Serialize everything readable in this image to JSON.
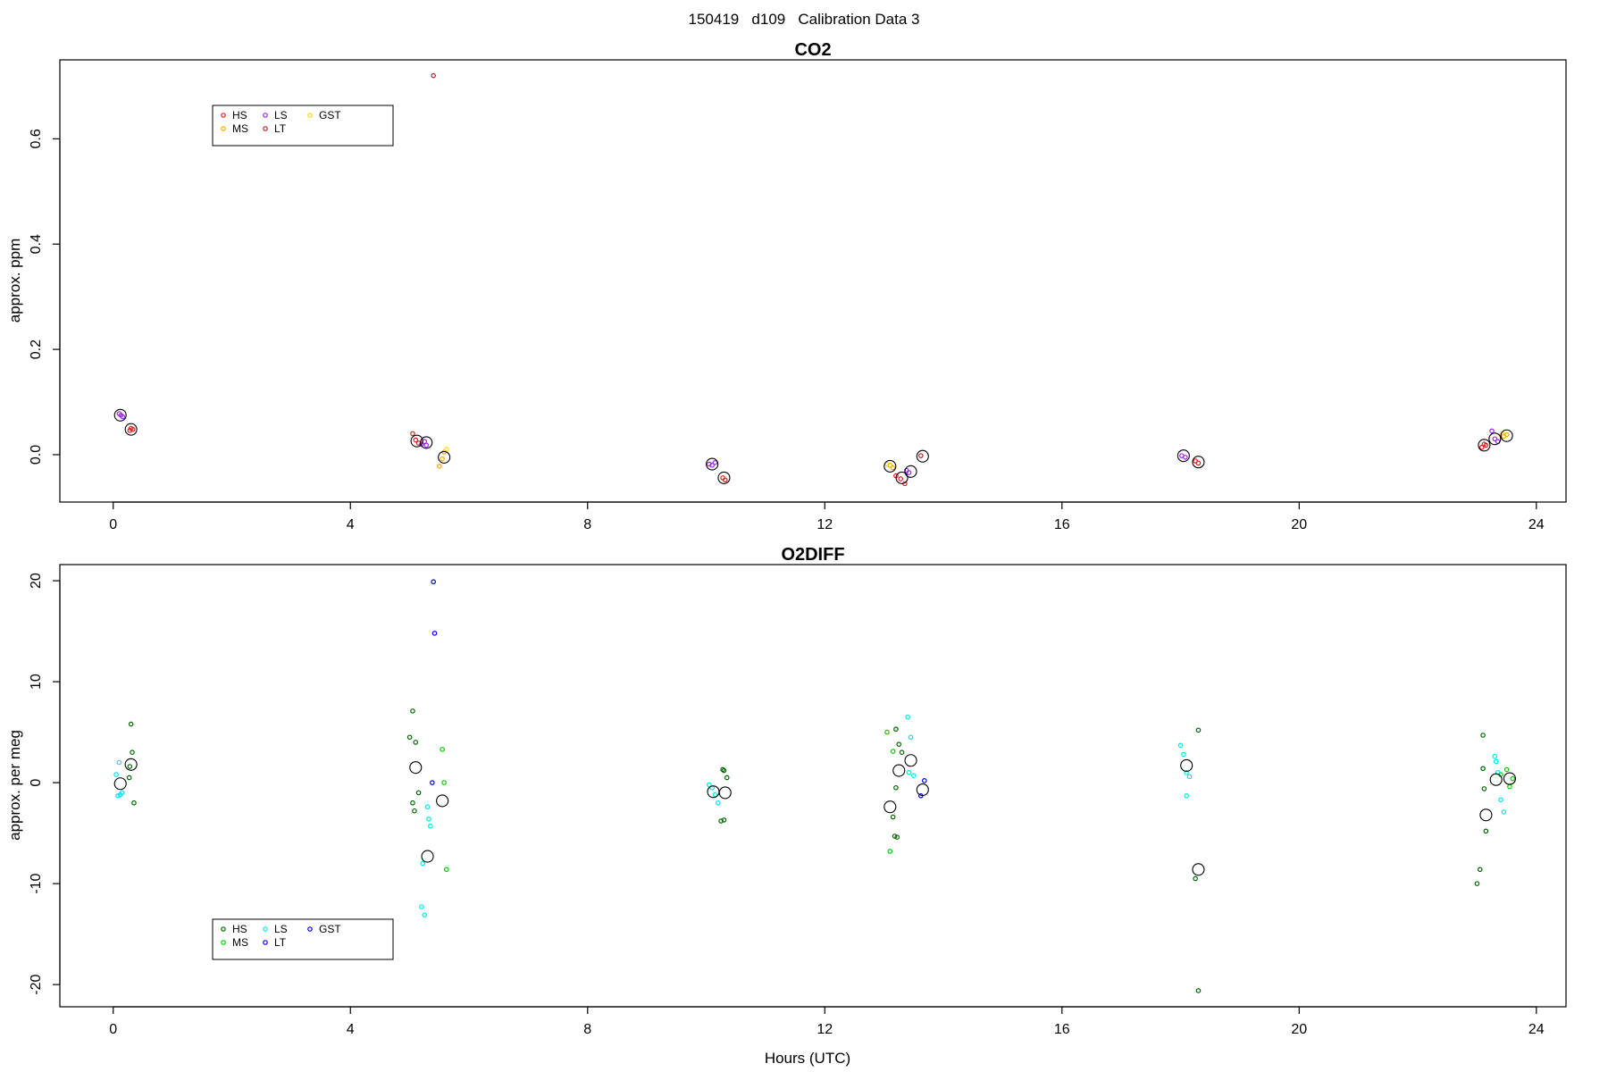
{
  "page_title": "150419   d109   Calibration Data 3",
  "colors": {
    "HS_co2": "#e31a1c",
    "MS_co2": "#ffa500",
    "LS_co2": "#a020f0",
    "LT_co2": "#b22222",
    "GST_co2": "#ffd700",
    "HS_o2": "#006400",
    "MS_o2": "#00cc00",
    "LS_o2": "#00e5ee",
    "LT_o2": "#0000ff",
    "GST_o2": "#0000cd",
    "mean": "#000000"
  },
  "chart_data": [
    {
      "type": "scatter",
      "title": "CO2",
      "xlabel": "",
      "ylabel": "approx. ppm",
      "xlim": [
        -0.9,
        24.5
      ],
      "ylim": [
        -0.09,
        0.75
      ],
      "xticks": [
        0,
        4,
        8,
        12,
        16,
        20,
        24
      ],
      "yticks": [
        0.0,
        0.2,
        0.4,
        0.6
      ],
      "ytick_labels": [
        "0.0",
        "0.2",
        "0.4",
        "0.6"
      ],
      "legend": {
        "position": "top-left",
        "entries": [
          "HS",
          "MS",
          "LS",
          "LT",
          "GST"
        ]
      },
      "series": [
        {
          "name": "HS",
          "color_key": "HS_co2",
          "points": [
            [
              0.3,
              0.05
            ],
            [
              0.28,
              0.046
            ],
            [
              0.33,
              0.048
            ],
            [
              5.05,
              0.04
            ],
            [
              5.1,
              0.028
            ],
            [
              5.15,
              0.022
            ],
            [
              10.28,
              -0.044
            ],
            [
              10.32,
              -0.048
            ],
            [
              13.2,
              -0.04
            ],
            [
              13.28,
              -0.046
            ],
            [
              13.35,
              -0.055
            ],
            [
              18.25,
              -0.012
            ],
            [
              18.3,
              -0.016
            ],
            [
              23.08,
              0.014
            ],
            [
              23.12,
              0.02
            ],
            [
              23.15,
              0.018
            ]
          ]
        },
        {
          "name": "MS",
          "color_key": "MS_co2",
          "points": [
            [
              5.5,
              -0.022
            ],
            [
              5.58,
              0.005
            ],
            [
              5.55,
              -0.008
            ],
            [
              13.1,
              -0.02
            ],
            [
              13.15,
              -0.025
            ],
            [
              23.45,
              0.035
            ],
            [
              23.5,
              0.038
            ]
          ]
        },
        {
          "name": "LS",
          "color_key": "LS_co2",
          "points": [
            [
              0.1,
              0.078
            ],
            [
              0.13,
              0.075
            ],
            [
              0.16,
              0.072
            ],
            [
              5.2,
              0.02
            ],
            [
              5.25,
              0.025
            ],
            [
              5.28,
              0.018
            ],
            [
              10.05,
              -0.018
            ],
            [
              10.1,
              -0.02
            ],
            [
              10.15,
              -0.015
            ],
            [
              13.38,
              -0.03
            ],
            [
              13.42,
              -0.034
            ],
            [
              18.02,
              -0.002
            ],
            [
              18.08,
              -0.005
            ],
            [
              23.25,
              0.045
            ],
            [
              23.3,
              0.03
            ],
            [
              23.35,
              0.025
            ]
          ]
        },
        {
          "name": "LT",
          "color_key": "LT_co2",
          "points": [
            [
              5.4,
              0.72
            ],
            [
              13.62,
              -0.002
            ]
          ]
        },
        {
          "name": "GST",
          "color_key": "GST_co2",
          "points": [
            [
              5.62,
              0.01
            ],
            [
              13.05,
              -0.018
            ],
            [
              23.42,
              0.04
            ]
          ]
        },
        {
          "name": "",
          "color_key": "mean",
          "mean": true,
          "points": [
            [
              0.12,
              0.075
            ],
            [
              0.3,
              0.048
            ],
            [
              5.12,
              0.026
            ],
            [
              5.28,
              0.023
            ],
            [
              5.58,
              -0.005
            ],
            [
              10.1,
              -0.018
            ],
            [
              10.3,
              -0.044
            ],
            [
              13.1,
              -0.022
            ],
            [
              13.3,
              -0.044
            ],
            [
              13.45,
              -0.032
            ],
            [
              13.65,
              -0.003
            ],
            [
              18.05,
              -0.002
            ],
            [
              18.3,
              -0.014
            ],
            [
              23.12,
              0.018
            ],
            [
              23.3,
              0.03
            ],
            [
              23.5,
              0.036
            ]
          ]
        }
      ]
    },
    {
      "type": "scatter",
      "title": "O2DIFF",
      "xlabel": "Hours (UTC)",
      "ylabel": "approx. per meg",
      "xlim": [
        -0.9,
        24.5
      ],
      "ylim": [
        -22.2,
        21.6
      ],
      "xticks": [
        0,
        4,
        8,
        12,
        16,
        20,
        24
      ],
      "yticks": [
        -20,
        -10,
        0,
        10,
        20
      ],
      "ytick_labels": [
        "-20",
        "-10",
        "0",
        "10",
        "20"
      ],
      "legend": {
        "position": "bottom-left",
        "entries": [
          "HS",
          "MS",
          "LS",
          "LT",
          "GST"
        ]
      },
      "series": [
        {
          "name": "HS",
          "color_key": "HS_o2",
          "points": [
            [
              0.3,
              5.8
            ],
            [
              0.32,
              3.0
            ],
            [
              0.28,
              1.6
            ],
            [
              0.35,
              -2.0
            ],
            [
              0.27,
              0.5
            ],
            [
              5.0,
              4.5
            ],
            [
              5.05,
              7.1
            ],
            [
              5.1,
              4.0
            ],
            [
              5.05,
              -2.0
            ],
            [
              5.15,
              -1.0
            ],
            [
              5.08,
              -2.8
            ],
            [
              10.3,
              1.2
            ],
            [
              10.35,
              0.5
            ],
            [
              10.25,
              -3.8
            ],
            [
              10.3,
              -3.7
            ],
            [
              10.28,
              1.3
            ],
            [
              13.2,
              5.3
            ],
            [
              13.25,
              3.8
            ],
            [
              13.3,
              3.0
            ],
            [
              13.2,
              -0.5
            ],
            [
              13.18,
              -5.3
            ],
            [
              13.15,
              -3.4
            ],
            [
              13.22,
              -5.4
            ],
            [
              18.3,
              5.2
            ],
            [
              18.25,
              -9.5
            ],
            [
              18.3,
              -20.6
            ],
            [
              23.1,
              4.7
            ],
            [
              23.12,
              -0.6
            ],
            [
              23.15,
              -4.8
            ],
            [
              23.05,
              -8.6
            ],
            [
              23.0,
              -10.0
            ],
            [
              23.1,
              1.4
            ]
          ]
        },
        {
          "name": "MS",
          "color_key": "MS_o2",
          "points": [
            [
              5.55,
              3.3
            ],
            [
              5.58,
              0.0
            ],
            [
              5.62,
              -8.6
            ],
            [
              13.05,
              5.0
            ],
            [
              13.1,
              -6.8
            ],
            [
              13.15,
              3.1
            ],
            [
              23.5,
              1.3
            ],
            [
              23.55,
              -0.4
            ],
            [
              23.4,
              0.8
            ],
            [
              23.6,
              0.4
            ]
          ]
        },
        {
          "name": "LS",
          "color_key": "LS_o2",
          "points": [
            [
              0.05,
              0.8
            ],
            [
              0.1,
              2.0
            ],
            [
              0.12,
              -1.2
            ],
            [
              0.15,
              -1.0
            ],
            [
              0.08,
              -1.3
            ],
            [
              5.2,
              -12.3
            ],
            [
              5.25,
              -13.1
            ],
            [
              5.3,
              -2.4
            ],
            [
              5.32,
              -3.6
            ],
            [
              5.35,
              -4.3
            ],
            [
              5.22,
              -8.0
            ],
            [
              10.1,
              -0.5
            ],
            [
              10.15,
              -1.2
            ],
            [
              10.2,
              -2.0
            ],
            [
              10.05,
              -0.2
            ],
            [
              13.4,
              6.5
            ],
            [
              13.45,
              4.5
            ],
            [
              13.5,
              0.7
            ],
            [
              13.42,
              1.0
            ],
            [
              18.0,
              3.7
            ],
            [
              18.05,
              2.8
            ],
            [
              18.1,
              -1.3
            ],
            [
              18.15,
              0.6
            ],
            [
              18.1,
              1.0
            ],
            [
              23.3,
              2.6
            ],
            [
              23.35,
              1.0
            ],
            [
              23.4,
              -1.7
            ],
            [
              23.45,
              -2.9
            ],
            [
              23.32,
              2.1
            ]
          ]
        },
        {
          "name": "LT",
          "color_key": "LT_o2",
          "points": [
            [
              5.4,
              19.9
            ],
            [
              5.42,
              14.8
            ],
            [
              5.38,
              0.0
            ]
          ]
        },
        {
          "name": "GST",
          "color_key": "GST_o2",
          "points": [
            [
              13.68,
              0.2
            ],
            [
              13.62,
              -1.3
            ]
          ]
        },
        {
          "name": "",
          "color_key": "mean",
          "mean": true,
          "points": [
            [
              0.12,
              -0.1
            ],
            [
              0.3,
              1.8
            ],
            [
              5.1,
              1.5
            ],
            [
              5.3,
              -7.3
            ],
            [
              5.55,
              -1.8
            ],
            [
              10.12,
              -0.9
            ],
            [
              10.32,
              -1.0
            ],
            [
              13.1,
              -2.4
            ],
            [
              13.25,
              1.2
            ],
            [
              13.45,
              2.2
            ],
            [
              13.65,
              -0.7
            ],
            [
              18.1,
              1.7
            ],
            [
              18.3,
              -8.6
            ],
            [
              23.15,
              -3.2
            ],
            [
              23.32,
              0.3
            ],
            [
              23.55,
              0.4
            ]
          ]
        }
      ]
    }
  ]
}
